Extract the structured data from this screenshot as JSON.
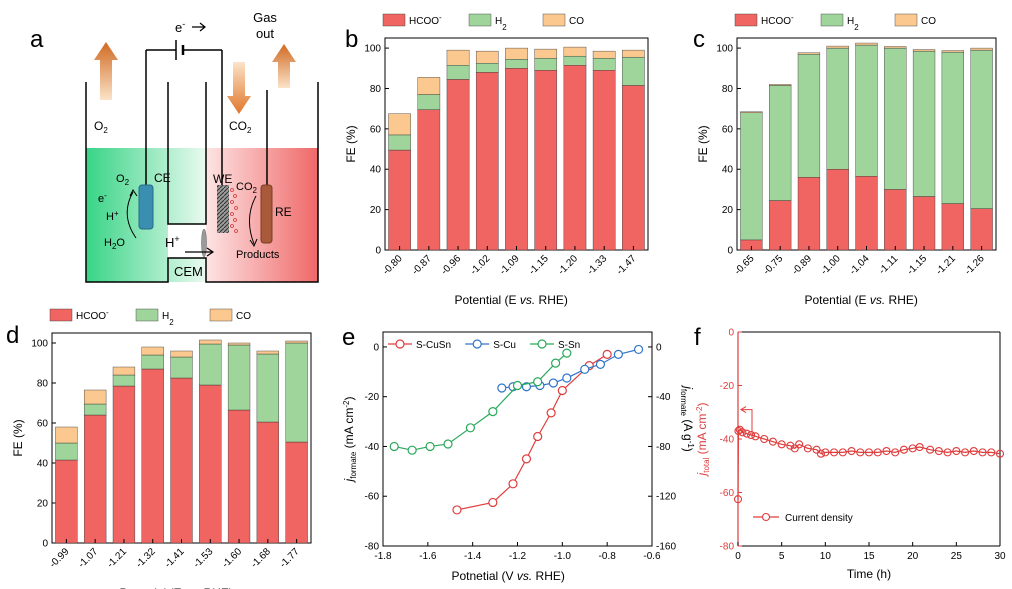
{
  "panel_labels": [
    "a",
    "b",
    "c",
    "d",
    "e",
    "f"
  ],
  "schematic": {
    "electron": "e",
    "electron_sup": "-",
    "gas_out_line1": "Gas",
    "gas_out_line2": "out",
    "o2": "O",
    "co2": "CO",
    "sub2": "2",
    "ce": "CE",
    "we": "WE",
    "re": "RE",
    "hplus": "H",
    "plus": "+",
    "h2o": "H",
    "h2o_tail": "O",
    "e_minus": "e",
    "minus": "-",
    "products": "Products",
    "cem": "CEM"
  },
  "legend_labels": {
    "hcoo": "HCOO",
    "hcoo_sup": "-",
    "h2": "H",
    "h2_sub": "2",
    "co": "CO"
  },
  "colors": {
    "hcoo": "#f06462",
    "h2": "#9fd49a",
    "co": "#fbc890",
    "s_cusn": "#e03c3c",
    "s_cu": "#2f74c9",
    "s_sn": "#2aa85a",
    "current": "#e03c3c"
  },
  "chart_data": [
    {
      "id": "b",
      "type": "bar",
      "stacked": true,
      "categories": [
        "-0.80",
        "-0.87",
        "-0.96",
        "-1.02",
        "-1.09",
        "-1.15",
        "-1.20",
        "-1.33",
        "-1.47"
      ],
      "series": [
        {
          "name": "HCOO-",
          "values": [
            49.5,
            69.5,
            84.5,
            88,
            90,
            89,
            91.5,
            89,
            81.5
          ]
        },
        {
          "name": "H2",
          "values": [
            7.5,
            7.5,
            7,
            4.5,
            4.5,
            6,
            4.5,
            6,
            14
          ]
        },
        {
          "name": "CO",
          "values": [
            10.5,
            8.5,
            7.5,
            6,
            5.5,
            4.5,
            4.5,
            3.5,
            3.5
          ]
        }
      ],
      "ylabel": "FE (%)",
      "xlabel": "Potential (E vs. RHE)",
      "ylim": [
        0,
        100
      ],
      "yticks": [
        0,
        20,
        40,
        60,
        80,
        100
      ],
      "legend": "top"
    },
    {
      "id": "c",
      "type": "bar",
      "stacked": true,
      "categories": [
        "-0.65",
        "-0.75",
        "-0.89",
        "-1.00",
        "-1.04",
        "-1.11",
        "-1.15",
        "-1.21",
        "-1.26"
      ],
      "series": [
        {
          "name": "HCOO-",
          "values": [
            5,
            24.5,
            36,
            40,
            36.5,
            30,
            26.5,
            23,
            20.5
          ]
        },
        {
          "name": "H2",
          "values": [
            63,
            57,
            61,
            60,
            65,
            70,
            72,
            75,
            78.5
          ]
        },
        {
          "name": "CO",
          "values": [
            0.5,
            0.5,
            0.7,
            1,
            1,
            0.8,
            0.8,
            0.8,
            1
          ]
        }
      ],
      "ylabel": "FE (%)",
      "xlabel": "Potential (E vs. RHE)",
      "ylim": [
        0,
        100
      ],
      "yticks": [
        0,
        20,
        40,
        60,
        80,
        100
      ],
      "legend": "top"
    },
    {
      "id": "d",
      "type": "bar",
      "stacked": true,
      "categories": [
        "-0.99",
        "-1.07",
        "-1.21",
        "-1.32",
        "-1.41",
        "-1.53",
        "-1.60",
        "-1.68",
        "-1.77"
      ],
      "series": [
        {
          "name": "HCOO-",
          "values": [
            41.5,
            64,
            78.5,
            87,
            82.5,
            79,
            66.5,
            60.5,
            50.5
          ]
        },
        {
          "name": "H2",
          "values": [
            8.5,
            5.5,
            5.5,
            7,
            10.5,
            20.5,
            32.5,
            34,
            49.5
          ]
        },
        {
          "name": "CO",
          "values": [
            8,
            7,
            4,
            4,
            3,
            2,
            1,
            1.5,
            1
          ]
        }
      ],
      "ylabel": "FE (%)",
      "xlabel": "Potential (E vs. RHE)",
      "ylim": [
        0,
        100
      ],
      "yticks": [
        0,
        20,
        40,
        60,
        80,
        100
      ],
      "legend": "top"
    },
    {
      "id": "e",
      "type": "line",
      "xlim": [
        -1.8,
        -0.6
      ],
      "xticks": [
        "-1.8",
        "-1.6",
        "-1.4",
        "-1.2",
        "-1.0",
        "-0.8",
        "-0.6"
      ],
      "ylim": [
        -80,
        0
      ],
      "yticks": [
        -80,
        -60,
        -40,
        -20,
        0
      ],
      "y2lim": [
        -160,
        0
      ],
      "y2ticks": [
        -160,
        -120,
        -80,
        -40,
        0
      ],
      "xlabel": "Potnetial (V vs. RHE)",
      "ylabel": "j_formate (mA cm-2)",
      "y2label": "j_formate (A g-1)",
      "series": [
        {
          "name": "S-CuSn",
          "axis": "left",
          "x": [
            -1.47,
            -1.31,
            -1.22,
            -1.16,
            -1.11,
            -1.05,
            -1.0,
            -0.88,
            -0.8
          ],
          "y": [
            -65.5,
            -62.5,
            -55,
            -45,
            -36,
            -26.5,
            -17.5,
            -7.5,
            -3
          ]
        },
        {
          "name": "S-Cu",
          "axis": "left",
          "x": [
            -1.27,
            -1.22,
            -1.16,
            -1.1,
            -1.04,
            -0.98,
            -0.9,
            -0.83,
            -0.75,
            -0.66
          ],
          "y": [
            -16.5,
            -16,
            -16,
            -15.5,
            -14.5,
            -12.5,
            -9,
            -7,
            -3,
            -1
          ]
        },
        {
          "name": "S-Sn",
          "axis": "left",
          "x": [
            -1.75,
            -1.67,
            -1.59,
            -1.51,
            -1.41,
            -1.31,
            -1.2,
            -1.11,
            -1.03,
            -0.98
          ],
          "y": [
            -40,
            -41.5,
            -40,
            -39,
            -32.5,
            -26,
            -15.5,
            -14,
            -6.5,
            -2.5
          ]
        }
      ],
      "legend": "top"
    },
    {
      "id": "f",
      "type": "line",
      "xlim": [
        0,
        30
      ],
      "xticks": [
        0,
        5,
        10,
        15,
        20,
        25,
        30
      ],
      "ylim": [
        -80,
        0
      ],
      "yticks": [
        -80,
        -60,
        -40,
        -20,
        0
      ],
      "xlabel": "Time (h)",
      "ylabel": "j_total (mA cm-2)",
      "legend_entry": "Current density",
      "legend": "bottom-left",
      "series": [
        {
          "name": "Current density",
          "x": [
            0,
            0.05,
            0.2,
            0.5,
            1.0,
            1.5,
            2,
            3,
            4,
            5,
            6,
            6.5,
            7,
            8,
            9,
            9.5,
            10,
            11,
            12,
            13,
            14,
            15,
            16,
            17,
            18,
            19,
            20,
            20.8,
            22,
            23,
            24,
            25,
            26,
            27,
            28,
            29,
            30
          ],
          "y": [
            -62.5,
            -37,
            -36.5,
            -37.5,
            -38,
            -38.5,
            -39,
            -40,
            -41,
            -42,
            -42.5,
            -43.5,
            -42,
            -43.5,
            -44,
            -45.5,
            -45,
            -45,
            -45,
            -44.5,
            -45,
            -45,
            -45,
            -44.5,
            -45,
            -44,
            -43.5,
            -43,
            -44,
            -44.5,
            -45,
            -44.5,
            -45,
            -44.5,
            -45,
            -45,
            -45.5
          ]
        }
      ]
    }
  ]
}
